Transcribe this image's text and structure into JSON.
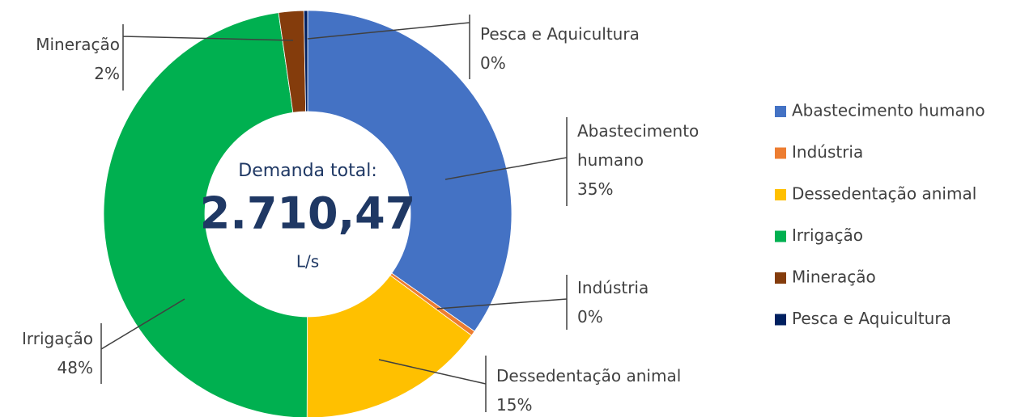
{
  "chart_data": {
    "type": "donut",
    "center_label": {
      "title": "Demanda total:",
      "value": "2.710,47",
      "unit": "L/s"
    },
    "categories": [
      "Abastecimento humano",
      "Indústria",
      "Dessedentação animal",
      "Irrigação",
      "Mineração",
      "Pesca e Aquicultura"
    ],
    "values": [
      35,
      0.4,
      15,
      48,
      2,
      0.3
    ],
    "value_labels": [
      "35%",
      "0%",
      "15%",
      "48%",
      "2%",
      "0%"
    ],
    "colors": [
      "#4472c4",
      "#ed7d31",
      "#ffc000",
      "#00b050",
      "#843c0c",
      "#002060"
    ],
    "legend": "right"
  }
}
